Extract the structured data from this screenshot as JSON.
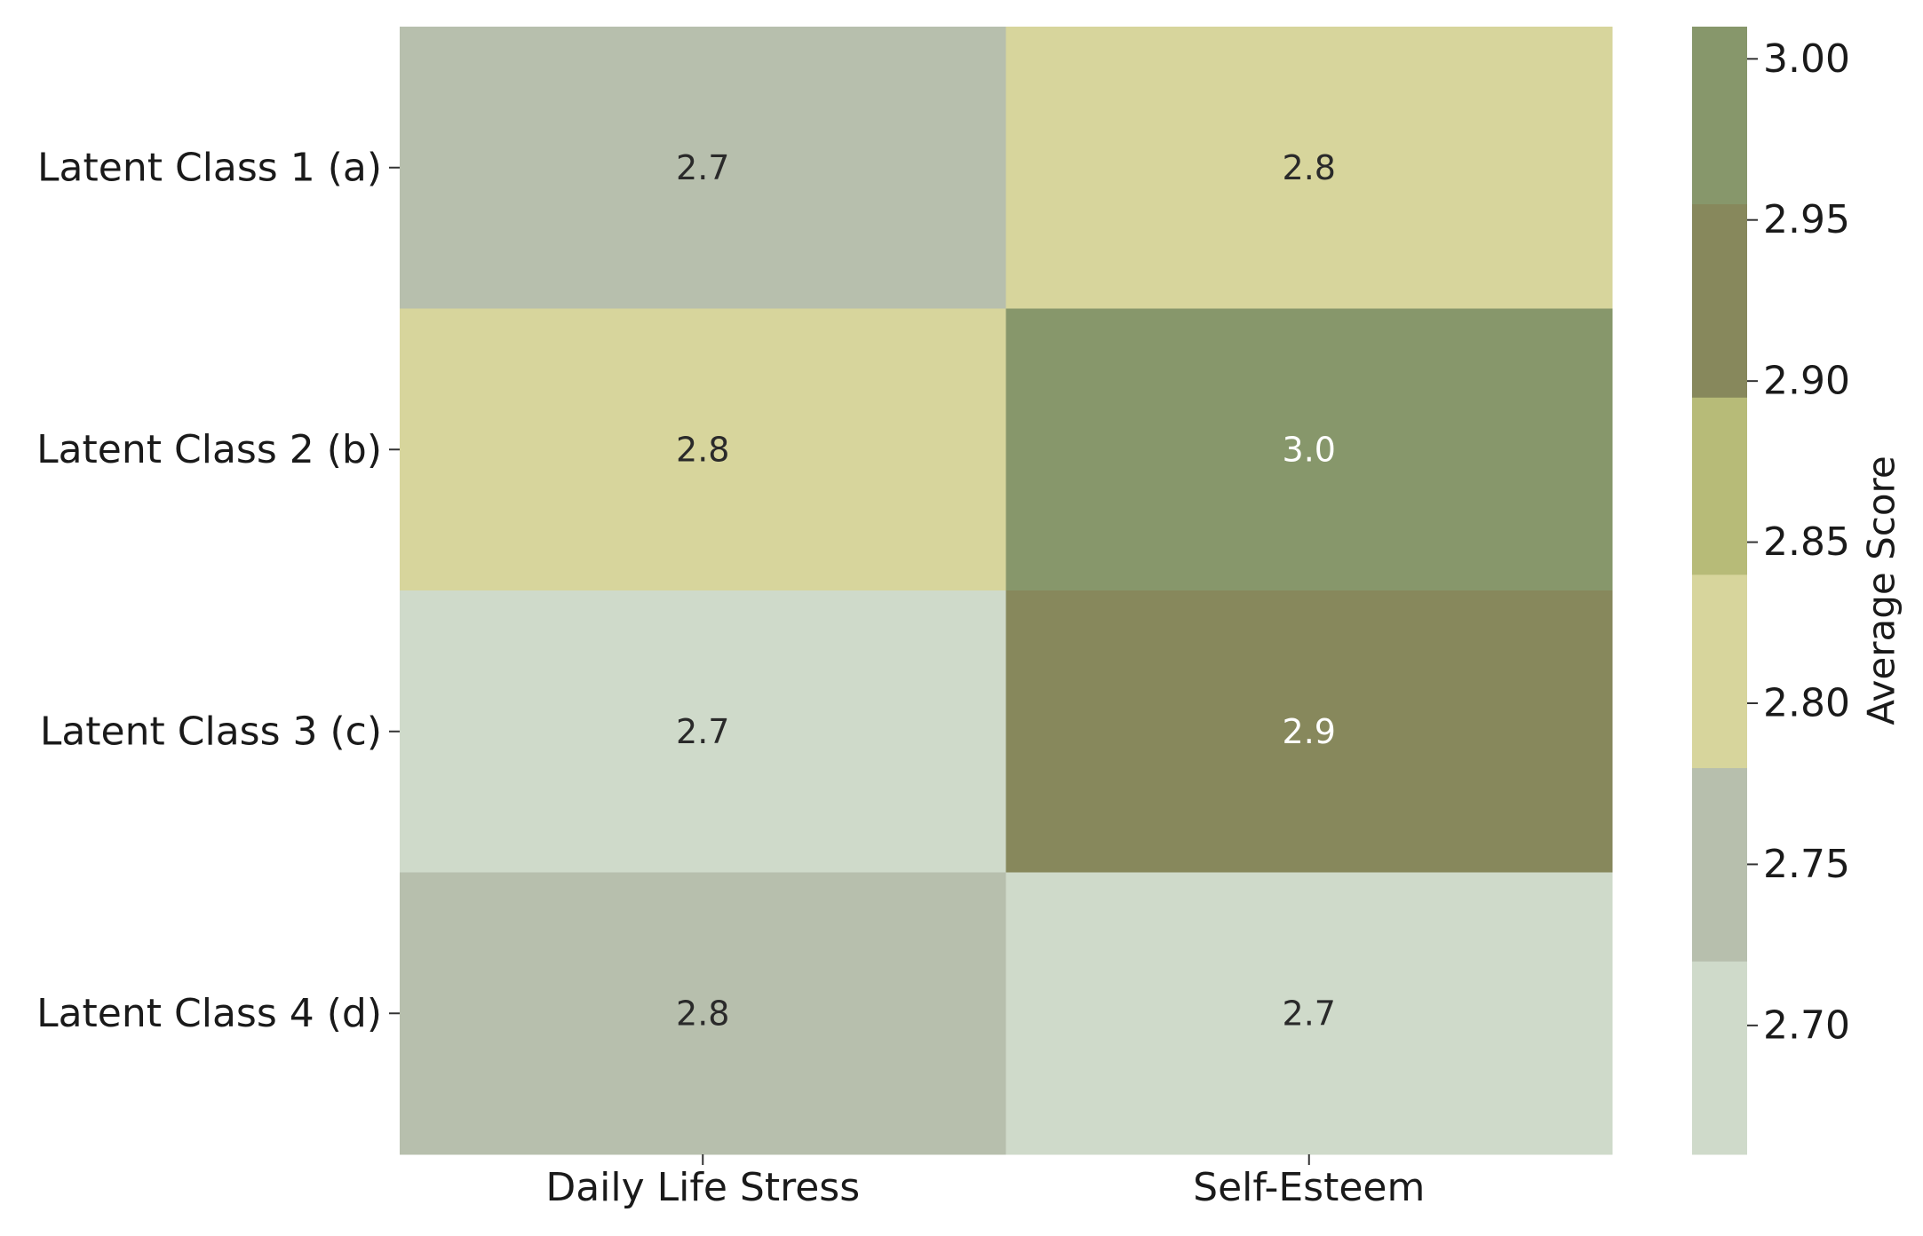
{
  "chart_data": {
    "type": "heatmap",
    "title": "",
    "xlabel": "",
    "ylabel": "",
    "x_categories": [
      "Daily Life Stress",
      "Self-Esteem"
    ],
    "y_categories": [
      "Latent Class 1 (a)",
      "Latent Class 2 (b)",
      "Latent Class 3 (c)",
      "Latent Class 4 (d)"
    ],
    "values": [
      [
        2.73,
        2.8
      ],
      [
        2.8,
        3.0
      ],
      [
        2.69,
        2.92
      ],
      [
        2.75,
        2.7
      ]
    ],
    "annotations": [
      [
        "2.7",
        "2.8"
      ],
      [
        "2.8",
        "3.0"
      ],
      [
        "2.7",
        "2.9"
      ],
      [
        "2.8",
        "2.7"
      ]
    ],
    "colorbar": {
      "label": "Average Score",
      "range": [
        2.66,
        3.01
      ],
      "ticks": [
        "2.70",
        "2.75",
        "2.80",
        "2.85",
        "2.90",
        "2.95",
        "3.00"
      ],
      "tick_values": [
        2.7,
        2.75,
        2.8,
        2.85,
        2.9,
        2.95,
        3.0
      ],
      "bins": [
        {
          "from": 2.66,
          "to": 2.72,
          "color": "#cfdaca"
        },
        {
          "from": 2.72,
          "to": 2.78,
          "color": "#b7bfad"
        },
        {
          "from": 2.78,
          "to": 2.84,
          "color": "#d7d59c"
        },
        {
          "from": 2.84,
          "to": 2.895,
          "color": "#b7bb78"
        },
        {
          "from": 2.895,
          "to": 2.955,
          "color": "#87885c"
        },
        {
          "from": 2.955,
          "to": 3.01,
          "color": "#87976b"
        }
      ]
    },
    "text_colors": {
      "light": "#ffffff",
      "dark": "#2a2a2a"
    }
  }
}
